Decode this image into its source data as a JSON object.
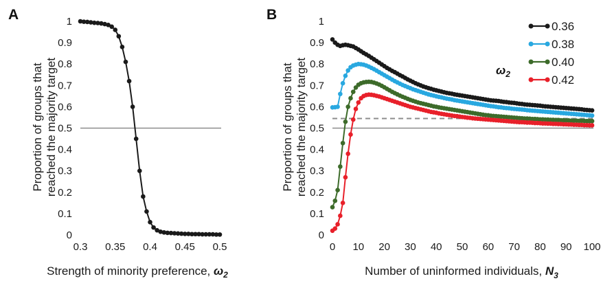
{
  "chart_data": [
    {
      "type": "line",
      "panel_label": "A",
      "xlabel": "Strength of minority preference, ",
      "xlabel_symbol": "ω",
      "xlabel_sub": "2",
      "ylabel_line1": "Proportion of groups that",
      "ylabel_line2": "reached the majority target",
      "xlim": [
        0.3,
        0.5
      ],
      "ylim": [
        0,
        1
      ],
      "xticks": [
        "0.3",
        "0.35",
        "0.4",
        "0.45",
        "0.5"
      ],
      "yticks": [
        "0",
        "0.1",
        "0.2",
        "0.3",
        "0.4",
        "0.5",
        "0.6",
        "0.7",
        "0.8",
        "0.9",
        "1"
      ],
      "reference_line": 0.5,
      "series": [
        {
          "color": "#1a1a1a",
          "x": [
            0.3,
            0.305,
            0.31,
            0.315,
            0.32,
            0.325,
            0.33,
            0.335,
            0.34,
            0.345,
            0.35,
            0.355,
            0.36,
            0.365,
            0.37,
            0.375,
            0.38,
            0.385,
            0.39,
            0.395,
            0.4,
            0.405,
            0.41,
            0.415,
            0.42,
            0.425,
            0.43,
            0.435,
            0.44,
            0.445,
            0.45,
            0.455,
            0.46,
            0.465,
            0.47,
            0.475,
            0.48,
            0.485,
            0.49,
            0.495,
            0.5
          ],
          "y": [
            1.0,
            0.998,
            0.997,
            0.995,
            0.993,
            0.992,
            0.99,
            0.987,
            0.983,
            0.975,
            0.96,
            0.93,
            0.88,
            0.81,
            0.72,
            0.6,
            0.45,
            0.3,
            0.18,
            0.11,
            0.06,
            0.035,
            0.022,
            0.015,
            0.012,
            0.01,
            0.009,
            0.008,
            0.007,
            0.006,
            0.005,
            0.005,
            0.004,
            0.004,
            0.004,
            0.003,
            0.003,
            0.003,
            0.003,
            0.002,
            0.002
          ]
        }
      ]
    },
    {
      "type": "line",
      "panel_label": "B",
      "xlabel": "Number of uninformed individuals, ",
      "xlabel_symbol": "N",
      "xlabel_sub": "3",
      "ylabel_line1": "Proportion of groups that",
      "ylabel_line2": "reached the majority target",
      "xlim": [
        0,
        100
      ],
      "ylim": [
        0,
        1
      ],
      "xticks": [
        "0",
        "10",
        "20",
        "30",
        "40",
        "50",
        "60",
        "70",
        "80",
        "90",
        "100"
      ],
      "yticks": [
        "0",
        "0.1",
        "0.2",
        "0.3",
        "0.4",
        "0.5",
        "0.6",
        "0.7",
        "0.8",
        "0.9",
        "1"
      ],
      "reference_line": 0.5,
      "dashed_line": 0.545,
      "legend_title_symbol": "ω",
      "legend_title_sub": "2",
      "legend_position": "top-right",
      "series": [
        {
          "name": "0.36",
          "color": "#1a1a1a",
          "y": [
            0.915,
            0.9,
            0.89,
            0.885,
            0.888,
            0.89,
            0.888,
            0.885,
            0.882,
            0.875,
            0.868,
            0.86,
            0.852,
            0.845,
            0.838,
            0.83,
            0.822,
            0.814,
            0.806,
            0.798,
            0.79,
            0.782,
            0.775,
            0.768,
            0.762,
            0.755,
            0.748,
            0.742,
            0.735,
            0.728,
            0.722,
            0.716,
            0.71,
            0.705,
            0.7,
            0.695,
            0.691,
            0.687,
            0.684,
            0.68,
            0.677,
            0.674,
            0.671,
            0.668,
            0.665,
            0.663,
            0.661,
            0.658,
            0.656,
            0.654,
            0.652,
            0.65,
            0.648,
            0.646,
            0.644,
            0.642,
            0.64,
            0.638,
            0.636,
            0.634,
            0.632,
            0.63,
            0.629,
            0.628,
            0.627,
            0.625,
            0.623,
            0.622,
            0.62,
            0.619,
            0.618,
            0.616,
            0.614,
            0.613,
            0.611,
            0.61,
            0.609,
            0.608,
            0.607,
            0.606,
            0.605,
            0.603,
            0.602,
            0.601,
            0.6,
            0.599,
            0.598,
            0.597,
            0.596,
            0.595,
            0.594,
            0.593,
            0.592,
            0.591,
            0.59,
            0.589,
            0.588,
            0.586,
            0.585,
            0.584,
            0.583
          ]
        },
        {
          "name": "0.38",
          "color": "#29a8e0",
          "y": [
            0.597,
            0.598,
            0.6,
            0.66,
            0.71,
            0.745,
            0.77,
            0.785,
            0.793,
            0.797,
            0.8,
            0.799,
            0.797,
            0.793,
            0.788,
            0.782,
            0.776,
            0.769,
            0.762,
            0.755,
            0.748,
            0.741,
            0.734,
            0.727,
            0.72,
            0.714,
            0.708,
            0.702,
            0.697,
            0.692,
            0.687,
            0.682,
            0.678,
            0.674,
            0.67,
            0.666,
            0.662,
            0.658,
            0.655,
            0.652,
            0.649,
            0.646,
            0.644,
            0.641,
            0.638,
            0.636,
            0.634,
            0.631,
            0.629,
            0.627,
            0.625,
            0.623,
            0.621,
            0.619,
            0.617,
            0.615,
            0.613,
            0.611,
            0.609,
            0.607,
            0.605,
            0.603,
            0.602,
            0.6,
            0.598,
            0.597,
            0.595,
            0.594,
            0.593,
            0.591,
            0.59,
            0.589,
            0.588,
            0.587,
            0.586,
            0.584,
            0.583,
            0.582,
            0.581,
            0.58,
            0.579,
            0.578,
            0.577,
            0.576,
            0.575,
            0.574,
            0.573,
            0.572,
            0.571,
            0.57,
            0.569,
            0.568,
            0.567,
            0.566,
            0.565,
            0.564,
            0.563,
            0.562,
            0.561,
            0.56,
            0.559
          ]
        },
        {
          "name": "0.40",
          "color": "#3d6b2a",
          "y": [
            0.13,
            0.16,
            0.21,
            0.32,
            0.43,
            0.53,
            0.6,
            0.64,
            0.67,
            0.69,
            0.703,
            0.71,
            0.714,
            0.716,
            0.717,
            0.716,
            0.713,
            0.709,
            0.704,
            0.698,
            0.691,
            0.684,
            0.677,
            0.67,
            0.664,
            0.658,
            0.652,
            0.647,
            0.642,
            0.637,
            0.632,
            0.628,
            0.624,
            0.62,
            0.617,
            0.614,
            0.611,
            0.608,
            0.605,
            0.602,
            0.6,
            0.597,
            0.595,
            0.593,
            0.591,
            0.589,
            0.587,
            0.585,
            0.583,
            0.581,
            0.579,
            0.577,
            0.575,
            0.573,
            0.571,
            0.569,
            0.567,
            0.565,
            0.563,
            0.561,
            0.56,
            0.558,
            0.557,
            0.556,
            0.555,
            0.554,
            0.553,
            0.552,
            0.551,
            0.55,
            0.549,
            0.548,
            0.547,
            0.546,
            0.545,
            0.545,
            0.544,
            0.543,
            0.543,
            0.542,
            0.541,
            0.541,
            0.54,
            0.54,
            0.539,
            0.539,
            0.538,
            0.538,
            0.537,
            0.537,
            0.536,
            0.536,
            0.535,
            0.535,
            0.535,
            0.534,
            0.534,
            0.534,
            0.533,
            0.533,
            0.533
          ]
        },
        {
          "name": "0.42",
          "color": "#e8202a",
          "y": [
            0.02,
            0.03,
            0.05,
            0.09,
            0.15,
            0.27,
            0.38,
            0.47,
            0.54,
            0.59,
            0.62,
            0.64,
            0.65,
            0.655,
            0.657,
            0.656,
            0.654,
            0.651,
            0.648,
            0.644,
            0.64,
            0.636,
            0.632,
            0.628,
            0.624,
            0.62,
            0.616,
            0.612,
            0.608,
            0.604,
            0.6,
            0.597,
            0.594,
            0.591,
            0.588,
            0.585,
            0.582,
            0.579,
            0.576,
            0.574,
            0.572,
            0.569,
            0.567,
            0.565,
            0.563,
            0.561,
            0.559,
            0.557,
            0.556,
            0.554,
            0.552,
            0.551,
            0.549,
            0.548,
            0.546,
            0.545,
            0.544,
            0.543,
            0.542,
            0.541,
            0.54,
            0.539,
            0.538,
            0.537,
            0.536,
            0.535,
            0.534,
            0.533,
            0.532,
            0.531,
            0.53,
            0.529,
            0.528,
            0.528,
            0.527,
            0.526,
            0.526,
            0.525,
            0.524,
            0.524,
            0.523,
            0.522,
            0.522,
            0.521,
            0.521,
            0.52,
            0.52,
            0.519,
            0.519,
            0.518,
            0.518,
            0.517,
            0.517,
            0.516,
            0.516,
            0.515,
            0.515,
            0.514,
            0.514,
            0.513,
            0.513
          ]
        }
      ]
    }
  ]
}
